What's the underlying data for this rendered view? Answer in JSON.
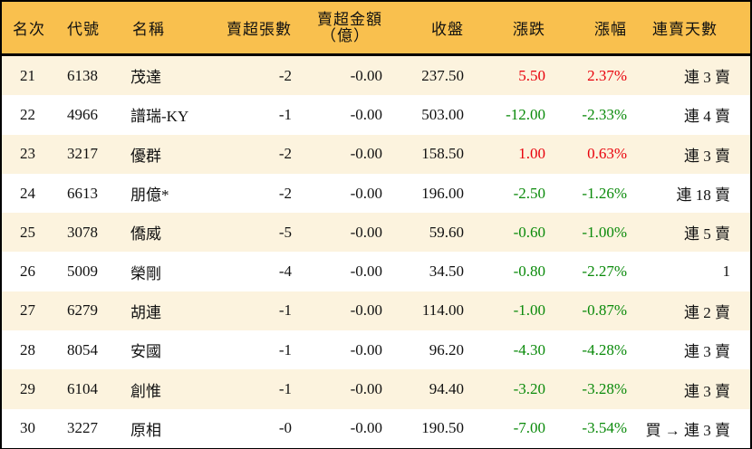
{
  "header": {
    "rank": "名次",
    "code": "代號",
    "name": "名稱",
    "sell_vol": "賣超張數",
    "sell_amt_line1": "賣超金額",
    "sell_amt_line2": "（億）",
    "close": "收盤",
    "change": "漲跌",
    "change_pct": "漲幅",
    "consecutive_days": "連賣天數"
  },
  "colors": {
    "header_bg": "#F9C04E",
    "row_odd_bg": "#FCF3DE",
    "row_even_bg": "#FFFFFF",
    "up": "#E8000B",
    "down": "#0A8A0A",
    "border": "#000000"
  },
  "rows": [
    {
      "rank": "21",
      "code": "6138",
      "name": "茂達",
      "sell_vol": "-2",
      "sell_amt": "-0.00",
      "close": "237.50",
      "change": "5.50",
      "change_pct": "2.37%",
      "dir": "up",
      "days": "連 3 賣"
    },
    {
      "rank": "22",
      "code": "4966",
      "name": "譜瑞-KY",
      "sell_vol": "-1",
      "sell_amt": "-0.00",
      "close": "503.00",
      "change": "-12.00",
      "change_pct": "-2.33%",
      "dir": "down",
      "days": "連 4 賣"
    },
    {
      "rank": "23",
      "code": "3217",
      "name": "優群",
      "sell_vol": "-2",
      "sell_amt": "-0.00",
      "close": "158.50",
      "change": "1.00",
      "change_pct": "0.63%",
      "dir": "up",
      "days": "連 3 賣"
    },
    {
      "rank": "24",
      "code": "6613",
      "name": "朋億*",
      "sell_vol": "-2",
      "sell_amt": "-0.00",
      "close": "196.00",
      "change": "-2.50",
      "change_pct": "-1.26%",
      "dir": "down",
      "days": "連 18 賣"
    },
    {
      "rank": "25",
      "code": "3078",
      "name": "僑威",
      "sell_vol": "-5",
      "sell_amt": "-0.00",
      "close": "59.60",
      "change": "-0.60",
      "change_pct": "-1.00%",
      "dir": "down",
      "days": "連 5 賣"
    },
    {
      "rank": "26",
      "code": "5009",
      "name": "榮剛",
      "sell_vol": "-4",
      "sell_amt": "-0.00",
      "close": "34.50",
      "change": "-0.80",
      "change_pct": "-2.27%",
      "dir": "down",
      "days": "1"
    },
    {
      "rank": "27",
      "code": "6279",
      "name": "胡連",
      "sell_vol": "-1",
      "sell_amt": "-0.00",
      "close": "114.00",
      "change": "-1.00",
      "change_pct": "-0.87%",
      "dir": "down",
      "days": "連 2 賣"
    },
    {
      "rank": "28",
      "code": "8054",
      "name": "安國",
      "sell_vol": "-1",
      "sell_amt": "-0.00",
      "close": "96.20",
      "change": "-4.30",
      "change_pct": "-4.28%",
      "dir": "down",
      "days": "連 3 賣"
    },
    {
      "rank": "29",
      "code": "6104",
      "name": "創惟",
      "sell_vol": "-1",
      "sell_amt": "-0.00",
      "close": "94.40",
      "change": "-3.20",
      "change_pct": "-3.28%",
      "dir": "down",
      "days": "連 3 賣"
    },
    {
      "rank": "30",
      "code": "3227",
      "name": "原相",
      "sell_vol": "-0",
      "sell_amt": "-0.00",
      "close": "190.50",
      "change": "-7.00",
      "change_pct": "-3.54%",
      "dir": "down",
      "days": "買 → 連 3 賣"
    }
  ]
}
